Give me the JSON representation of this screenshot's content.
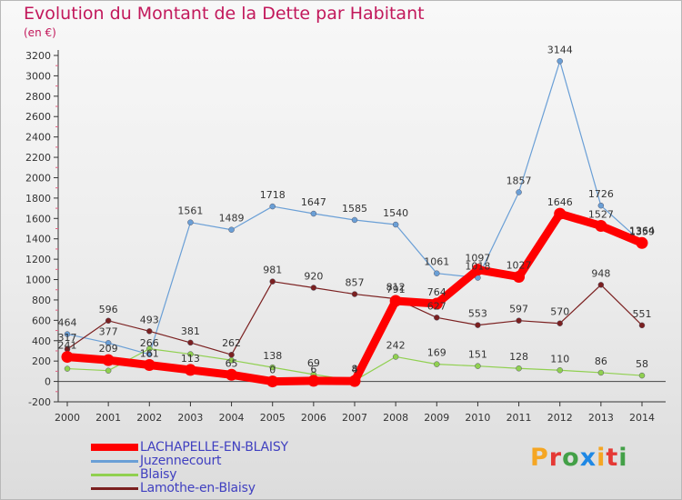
{
  "header": {
    "title": "Evolution du Montant de la Dette par Habitant",
    "unit": "(en €)"
  },
  "logo": {
    "text": "Proxiti",
    "letter_colors": [
      "#f5a623",
      "#e53935",
      "#43a047",
      "#1e88e5",
      "#f5a623",
      "#e53935",
      "#43a047"
    ]
  },
  "chart_data": {
    "type": "line",
    "title": "Evolution du Montant de la Dette par Habitant",
    "ylabel": "(en €)",
    "xlabel": "",
    "ylim": [
      -200,
      3200
    ],
    "ytick_step": 200,
    "grid": false,
    "legend_position": "bottom-left",
    "categories": [
      "2000",
      "2001",
      "2002",
      "2003",
      "2004",
      "2005",
      "2006",
      "2007",
      "2008",
      "2009",
      "2010",
      "2011",
      "2012",
      "2013",
      "2014"
    ],
    "series": [
      {
        "name": "LACHAPELLE-EN-BLAISY",
        "color": "#ff0000",
        "values": [
          241,
          209,
          161,
          113,
          65,
          0,
          6,
          4,
          791,
          764,
          1097,
          1027,
          1646,
          1527,
          1359
        ],
        "labels": [
          "241",
          "209",
          "161",
          "113",
          "65",
          "0",
          "6",
          "4",
          "791",
          "764",
          "1097",
          "1027",
          "1646",
          "1527",
          "1359"
        ]
      },
      {
        "name": "Juzennecourt",
        "color": "#6a9fd6",
        "values": [
          464,
          377,
          266,
          1561,
          1489,
          1718,
          1647,
          1585,
          1540,
          1061,
          1018,
          1857,
          3144,
          1726,
          1364
        ],
        "labels": [
          "464",
          "377",
          "266",
          "1561",
          "1489",
          "1718",
          "1647",
          "1585",
          "1540",
          "1061",
          "1018",
          "1857",
          "3144",
          "1726",
          "1364"
        ]
      },
      {
        "name": "Blaisy",
        "color": "#90d050",
        "values": [
          125,
          106,
          321,
          268,
          208,
          138,
          69,
          8,
          242,
          169,
          151,
          128,
          110,
          86,
          58
        ],
        "labels": [
          "",
          "",
          "",
          "",
          "",
          "138",
          "69",
          "8",
          "242",
          "169",
          "151",
          "128",
          "110",
          "86",
          "58"
        ]
      },
      {
        "name": "Lamothe-en-Blaisy",
        "color": "#7b2020",
        "values": [
          317,
          596,
          493,
          381,
          262,
          981,
          920,
          857,
          812,
          627,
          553,
          597,
          570,
          948,
          551
        ],
        "labels": [
          "317",
          "596",
          "493",
          "381",
          "262",
          "981",
          "920",
          "857",
          "812",
          "627",
          "553",
          "597",
          "570",
          "948",
          "551"
        ]
      }
    ]
  }
}
